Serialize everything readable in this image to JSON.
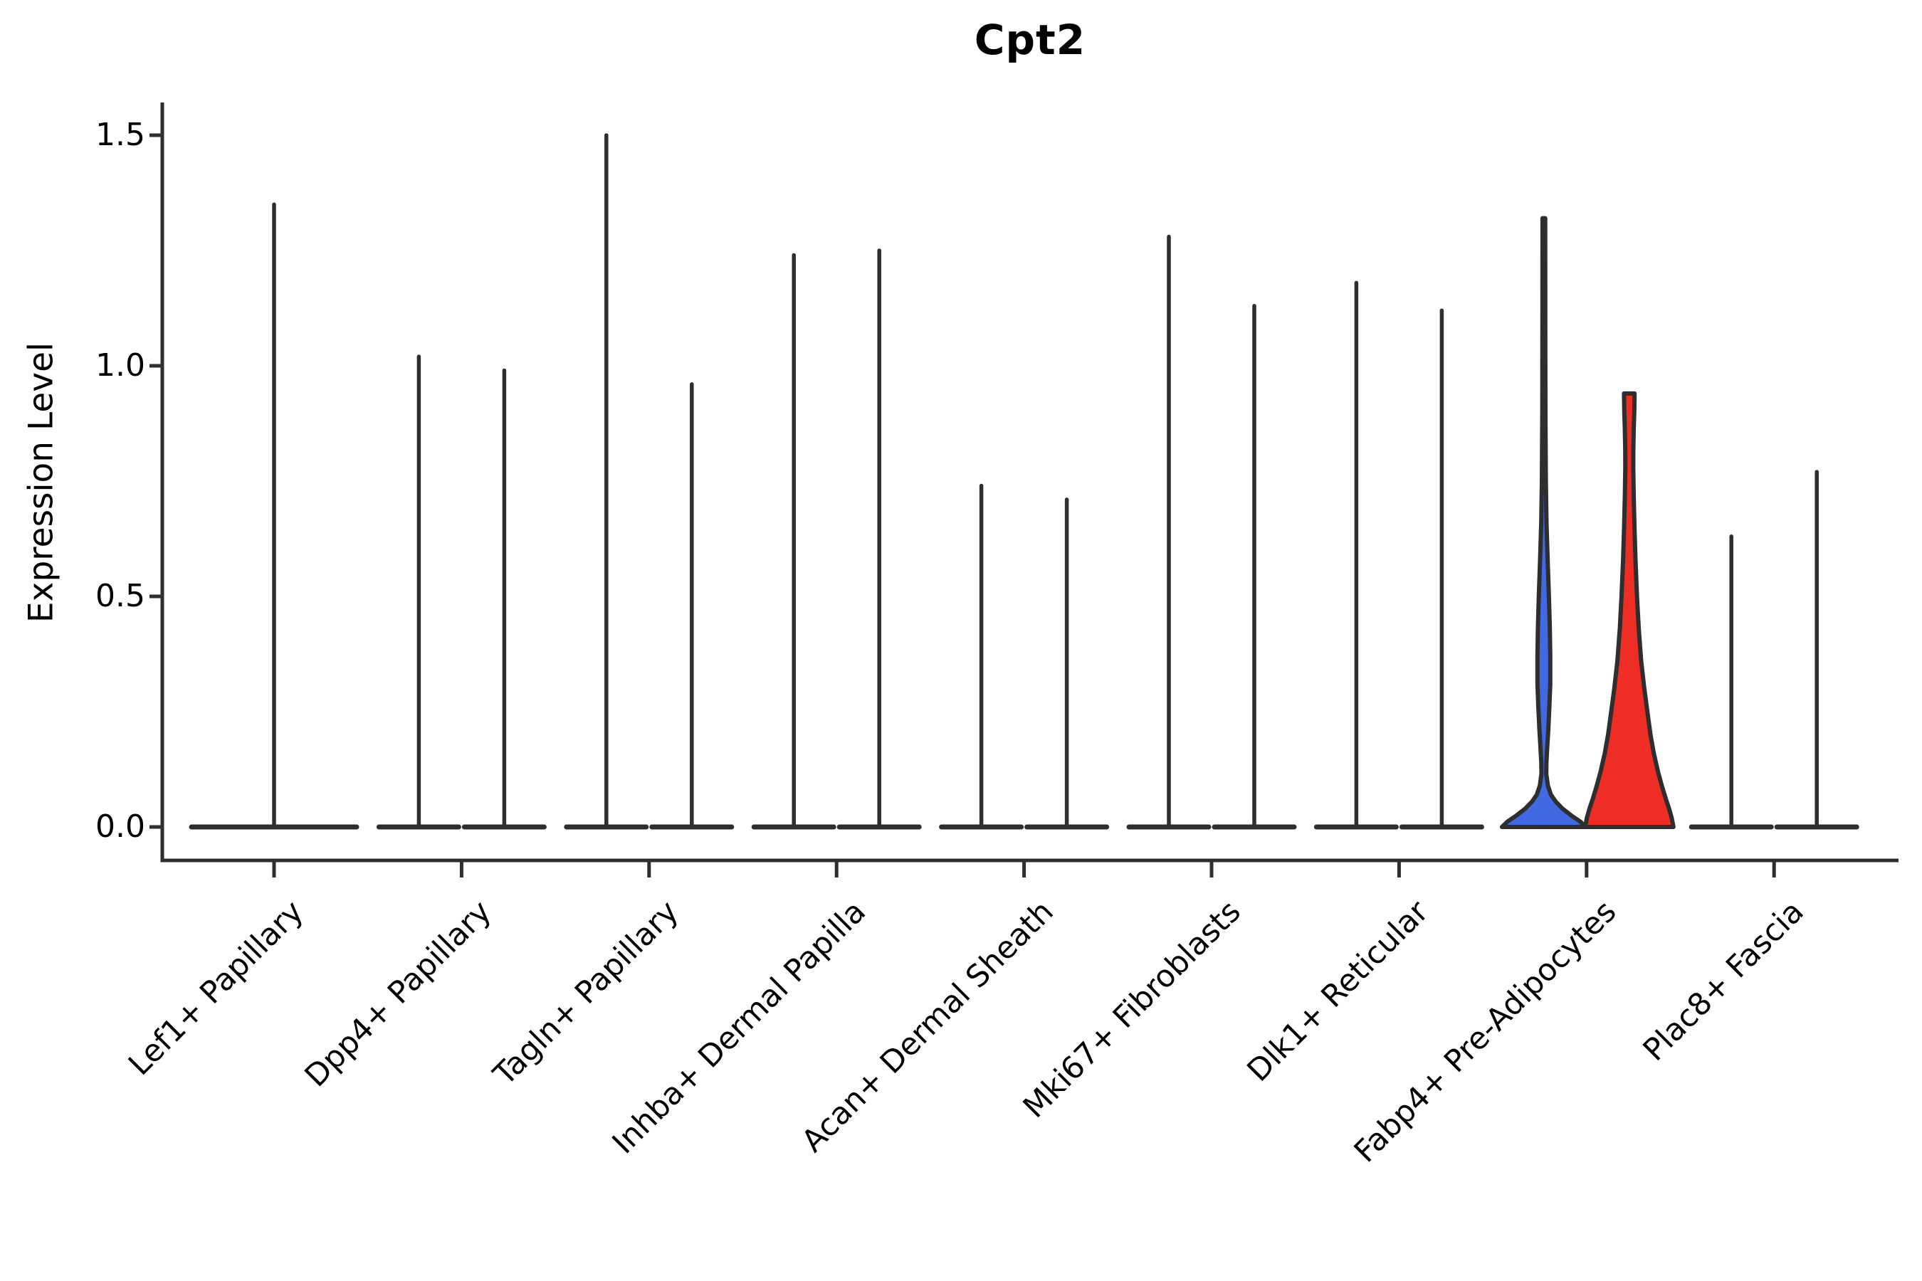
{
  "figure": {
    "title": "Cpt2",
    "ylabel": "Expression Level"
  },
  "colors": {
    "outline": "#2e2e2e",
    "blue_fill": "#4169E1",
    "red_fill": "#EE2E24",
    "background": "#ffffff"
  },
  "chart_data": {
    "type": "violin",
    "title": "Cpt2",
    "ylabel": "Expression Level",
    "xlabel": "",
    "ylim": [
      0,
      1.57
    ],
    "yticks": [
      0.0,
      0.5,
      1.0,
      1.5
    ],
    "ytick_labels": [
      "0.0",
      "0.5",
      "1.0",
      "1.5"
    ],
    "grid": false,
    "legend": "none",
    "x_tick_rotation_deg": 45,
    "categories": [
      "Lef1+ Papillary",
      "Dpp4+ Papillary",
      "Tagln+ Papillary",
      "Inhba+ Dermal Papilla",
      "Acan+ Dermal Sheath",
      "Mki67+ Fibroblasts",
      "Dlk1+ Reticular",
      "Fabp4+ Pre-Adipocytes",
      "Plac8+ Fascia"
    ],
    "note": "Most violins are collapsed flat at expression 0 with a single thin spike up to the max expression value; only Fabp4+ Pre-Adipocytes shows visible density bodies (left violin blue, right violin red). No legend shown.",
    "groups": [
      {
        "category": "Lef1+ Papillary",
        "violins": [
          {
            "side": "single",
            "max_expression": 1.35,
            "body": "collapsed",
            "fill": null
          }
        ]
      },
      {
        "category": "Dpp4+ Papillary",
        "violins": [
          {
            "side": "left",
            "max_expression": 1.02,
            "body": "collapsed",
            "fill": null
          },
          {
            "side": "right",
            "max_expression": 0.99,
            "body": "collapsed",
            "fill": null
          }
        ]
      },
      {
        "category": "Tagln+ Papillary",
        "violins": [
          {
            "side": "left",
            "max_expression": 1.5,
            "body": "collapsed",
            "fill": null
          },
          {
            "side": "right",
            "max_expression": 0.96,
            "body": "collapsed",
            "fill": null
          }
        ]
      },
      {
        "category": "Inhba+ Dermal Papilla",
        "violins": [
          {
            "side": "left",
            "max_expression": 1.24,
            "body": "collapsed",
            "fill": null
          },
          {
            "side": "right",
            "max_expression": 1.25,
            "body": "collapsed",
            "fill": null
          }
        ]
      },
      {
        "category": "Acan+ Dermal Sheath",
        "violins": [
          {
            "side": "left",
            "max_expression": 0.74,
            "body": "collapsed",
            "fill": null
          },
          {
            "side": "right",
            "max_expression": 0.71,
            "body": "collapsed",
            "fill": null
          }
        ]
      },
      {
        "category": "Mki67+ Fibroblasts",
        "violins": [
          {
            "side": "left",
            "max_expression": 1.28,
            "body": "collapsed",
            "fill": null
          },
          {
            "side": "right",
            "max_expression": 1.13,
            "body": "collapsed",
            "fill": null
          }
        ]
      },
      {
        "category": "Dlk1+ Reticular",
        "violins": [
          {
            "side": "left",
            "max_expression": 1.18,
            "body": "collapsed",
            "fill": null
          },
          {
            "side": "right",
            "max_expression": 1.12,
            "body": "collapsed",
            "fill": null
          }
        ]
      },
      {
        "category": "Fabp4+ Pre-Adipocytes",
        "violins": [
          {
            "side": "left",
            "max_expression": 1.32,
            "body": "density",
            "fill": "#4169E1",
            "profile": [
              [
                1.32,
                0.03
              ],
              [
                1.1,
                0.032
              ],
              [
                0.9,
                0.036
              ],
              [
                0.75,
                0.045
              ],
              [
                0.66,
                0.06
              ],
              [
                0.58,
                0.085
              ],
              [
                0.5,
                0.115
              ],
              [
                0.43,
                0.135
              ],
              [
                0.37,
                0.145
              ],
              [
                0.31,
                0.145
              ],
              [
                0.26,
                0.125
              ],
              [
                0.21,
                0.1
              ],
              [
                0.17,
                0.075
              ],
              [
                0.14,
                0.058
              ],
              [
                0.115,
                0.055
              ],
              [
                0.09,
                0.09
              ],
              [
                0.07,
                0.16
              ],
              [
                0.055,
                0.27
              ],
              [
                0.04,
                0.42
              ],
              [
                0.025,
                0.62
              ],
              [
                0.012,
                0.82
              ],
              [
                0.0,
                0.95
              ]
            ]
          },
          {
            "side": "right",
            "max_expression": 0.94,
            "body": "density",
            "fill": "#EE2E24",
            "profile": [
              [
                0.94,
                0.12
              ],
              [
                0.905,
                0.115
              ],
              [
                0.865,
                0.102
              ],
              [
                0.82,
                0.092
              ],
              [
                0.78,
                0.09
              ],
              [
                0.72,
                0.1
              ],
              [
                0.65,
                0.118
              ],
              [
                0.58,
                0.14
              ],
              [
                0.5,
                0.175
              ],
              [
                0.43,
                0.215
              ],
              [
                0.36,
                0.27
              ],
              [
                0.3,
                0.34
              ],
              [
                0.25,
                0.41
              ],
              [
                0.2,
                0.48
              ],
              [
                0.16,
                0.555
              ],
              [
                0.12,
                0.65
              ],
              [
                0.09,
                0.735
              ],
              [
                0.06,
                0.83
              ],
              [
                0.04,
                0.9
              ],
              [
                0.02,
                0.96
              ],
              [
                0.0,
                1.0
              ]
            ]
          }
        ]
      },
      {
        "category": "Plac8+ Fascia",
        "violins": [
          {
            "side": "left",
            "max_expression": 0.63,
            "body": "collapsed",
            "fill": null
          },
          {
            "side": "right",
            "max_expression": 0.77,
            "body": "collapsed",
            "fill": null
          }
        ]
      }
    ]
  }
}
